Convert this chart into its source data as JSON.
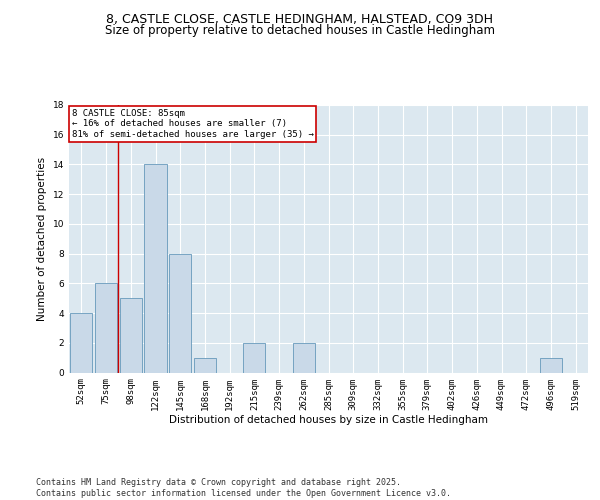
{
  "title1": "8, CASTLE CLOSE, CASTLE HEDINGHAM, HALSTEAD, CO9 3DH",
  "title2": "Size of property relative to detached houses in Castle Hedingham",
  "xlabel": "Distribution of detached houses by size in Castle Hedingham",
  "ylabel": "Number of detached properties",
  "categories": [
    "52sqm",
    "75sqm",
    "98sqm",
    "122sqm",
    "145sqm",
    "168sqm",
    "192sqm",
    "215sqm",
    "239sqm",
    "262sqm",
    "285sqm",
    "309sqm",
    "332sqm",
    "355sqm",
    "379sqm",
    "402sqm",
    "426sqm",
    "449sqm",
    "472sqm",
    "496sqm",
    "519sqm"
  ],
  "values": [
    4,
    6,
    5,
    14,
    8,
    1,
    0,
    2,
    0,
    2,
    0,
    0,
    0,
    0,
    0,
    0,
    0,
    0,
    0,
    1,
    0
  ],
  "bar_color": "#c9d9e8",
  "bar_edge_color": "#6699bb",
  "background_color": "#dce8f0",
  "grid_color": "#ffffff",
  "vline_x": 1.5,
  "vline_color": "#cc0000",
  "annotation_text": "8 CASTLE CLOSE: 85sqm\n← 16% of detached houses are smaller (7)\n81% of semi-detached houses are larger (35) →",
  "annotation_box_color": "#ffffff",
  "annotation_box_edge": "#cc0000",
  "ylim": [
    0,
    18
  ],
  "yticks": [
    0,
    2,
    4,
    6,
    8,
    10,
    12,
    14,
    16,
    18
  ],
  "footer": "Contains HM Land Registry data © Crown copyright and database right 2025.\nContains public sector information licensed under the Open Government Licence v3.0.",
  "title_fontsize": 9,
  "subtitle_fontsize": 8.5,
  "axis_label_fontsize": 7.5,
  "tick_fontsize": 6.5,
  "annotation_fontsize": 6.5,
  "footer_fontsize": 6.0
}
